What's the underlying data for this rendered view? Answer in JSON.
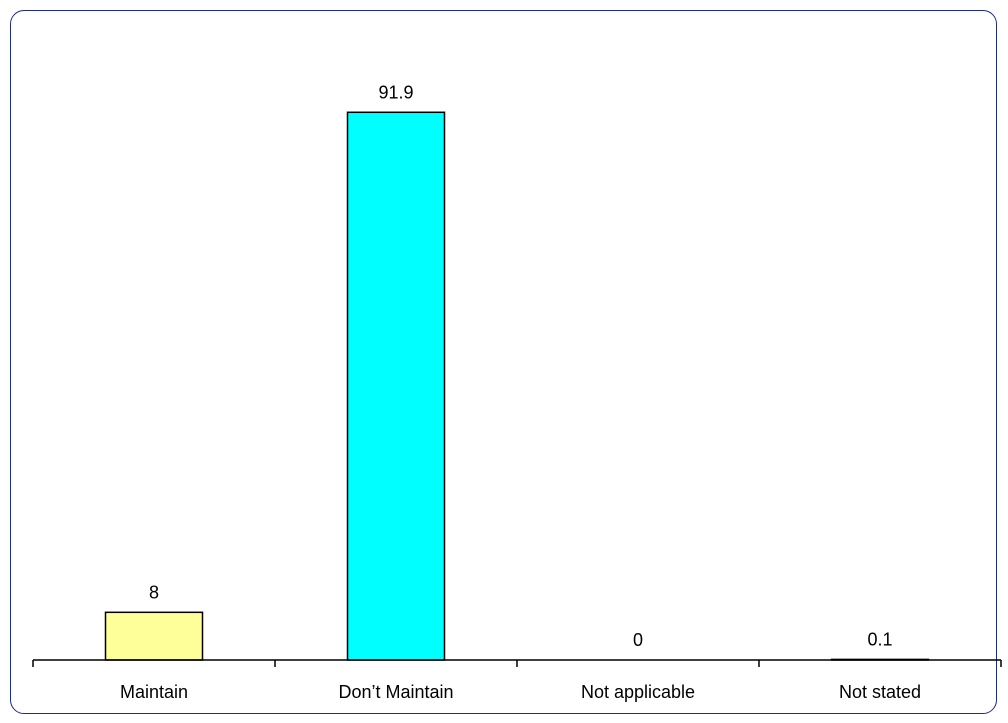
{
  "chart_data": {
    "type": "bar",
    "categories": [
      "Maintain",
      "Don’t Maintain",
      "Not applicable",
      "Not stated"
    ],
    "values": [
      8,
      91.9,
      0,
      0.1
    ],
    "value_labels": [
      "8",
      "91.9",
      "0",
      "0.1"
    ],
    "title": "",
    "xlabel": "",
    "ylabel": "",
    "ylim": [
      0,
      100
    ],
    "grid": false,
    "legend": "none",
    "colors": [
      "#ffff99",
      "#00ffff",
      "#ffff99",
      "#00ffff"
    ],
    "bar_edge_color": "#000000",
    "frame_color": "#1b2b8f"
  }
}
